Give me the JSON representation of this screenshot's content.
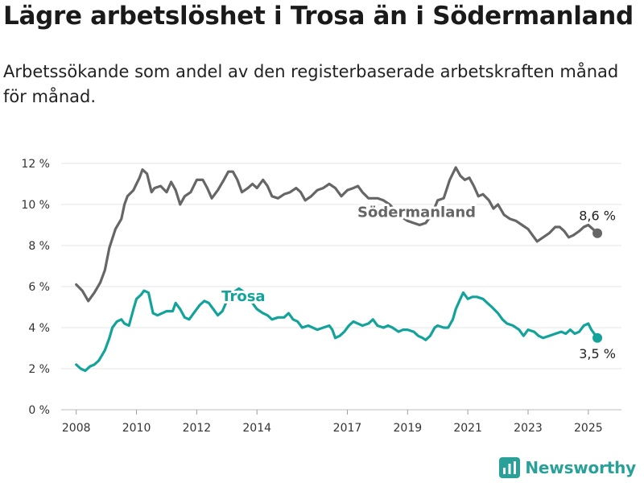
{
  "title": "Lägre arbetslöshet i Trosa än i Södermanland",
  "subtitle": "Arbetssökande som andel av den registerbaserade arbetskraften månad för månad.",
  "brand": {
    "name": "Newsworthy",
    "icon": "bar-chart-logo-icon",
    "color": "#29a199"
  },
  "chart_data": {
    "type": "line",
    "xlim": [
      2007.5,
      2026.1
    ],
    "ylim": [
      0,
      12
    ],
    "x_ticks": [
      2008,
      2010,
      2012,
      2014,
      2017,
      2019,
      2021,
      2023,
      2025
    ],
    "x_tick_labels": [
      "2008",
      "2010",
      "2012",
      "2014",
      "2017",
      "2019",
      "2021",
      "2023",
      "2025"
    ],
    "y_ticks": [
      0,
      2,
      4,
      6,
      8,
      10,
      12
    ],
    "y_tick_labels": [
      "0 %",
      "2 %",
      "4 %",
      "6 %",
      "8 %",
      "10 %",
      "12 %"
    ],
    "grid": "horizontal",
    "series": [
      {
        "name": "Södermanland",
        "color": "#666666",
        "end_label": "8,6 %",
        "points": [
          [
            2008.0,
            6.1
          ],
          [
            2008.2,
            5.8
          ],
          [
            2008.4,
            5.3
          ],
          [
            2008.6,
            5.7
          ],
          [
            2008.8,
            6.2
          ],
          [
            2008.95,
            6.8
          ],
          [
            2009.1,
            7.9
          ],
          [
            2009.3,
            8.8
          ],
          [
            2009.5,
            9.3
          ],
          [
            2009.6,
            10.0
          ],
          [
            2009.7,
            10.4
          ],
          [
            2009.9,
            10.7
          ],
          [
            2010.0,
            11.0
          ],
          [
            2010.1,
            11.3
          ],
          [
            2010.2,
            11.7
          ],
          [
            2010.35,
            11.5
          ],
          [
            2010.5,
            10.6
          ],
          [
            2010.6,
            10.8
          ],
          [
            2010.8,
            10.9
          ],
          [
            2011.0,
            10.6
          ],
          [
            2011.15,
            11.1
          ],
          [
            2011.3,
            10.7
          ],
          [
            2011.45,
            10.0
          ],
          [
            2011.6,
            10.4
          ],
          [
            2011.8,
            10.6
          ],
          [
            2012.0,
            11.2
          ],
          [
            2012.2,
            11.2
          ],
          [
            2012.35,
            10.8
          ],
          [
            2012.5,
            10.3
          ],
          [
            2012.7,
            10.7
          ],
          [
            2012.9,
            11.2
          ],
          [
            2013.05,
            11.6
          ],
          [
            2013.2,
            11.6
          ],
          [
            2013.35,
            11.2
          ],
          [
            2013.5,
            10.6
          ],
          [
            2013.7,
            10.8
          ],
          [
            2013.85,
            11.0
          ],
          [
            2014.0,
            10.8
          ],
          [
            2014.2,
            11.2
          ],
          [
            2014.35,
            10.9
          ],
          [
            2014.5,
            10.4
          ],
          [
            2014.7,
            10.3
          ],
          [
            2014.9,
            10.5
          ],
          [
            2015.1,
            10.6
          ],
          [
            2015.3,
            10.8
          ],
          [
            2015.45,
            10.6
          ],
          [
            2015.6,
            10.2
          ],
          [
            2015.8,
            10.4
          ],
          [
            2016.0,
            10.7
          ],
          [
            2016.2,
            10.8
          ],
          [
            2016.4,
            11.0
          ],
          [
            2016.6,
            10.8
          ],
          [
            2016.8,
            10.4
          ],
          [
            2017.0,
            10.7
          ],
          [
            2017.2,
            10.8
          ],
          [
            2017.35,
            10.9
          ],
          [
            2017.5,
            10.6
          ],
          [
            2017.7,
            10.3
          ],
          [
            2017.9,
            10.3
          ],
          [
            2018.0,
            10.3
          ],
          [
            2018.2,
            10.2
          ],
          [
            2018.4,
            10.0
          ],
          [
            2018.6,
            9.7
          ],
          [
            2018.8,
            9.4
          ],
          [
            2019.0,
            9.2
          ],
          [
            2019.2,
            9.1
          ],
          [
            2019.4,
            9.0
          ],
          [
            2019.6,
            9.1
          ],
          [
            2019.8,
            9.5
          ],
          [
            2020.0,
            10.2
          ],
          [
            2020.2,
            10.3
          ],
          [
            2020.4,
            11.2
          ],
          [
            2020.6,
            11.8
          ],
          [
            2020.75,
            11.4
          ],
          [
            2020.9,
            11.2
          ],
          [
            2021.05,
            11.3
          ],
          [
            2021.2,
            10.9
          ],
          [
            2021.35,
            10.4
          ],
          [
            2021.5,
            10.5
          ],
          [
            2021.7,
            10.2
          ],
          [
            2021.85,
            9.8
          ],
          [
            2022.0,
            10.0
          ],
          [
            2022.2,
            9.5
          ],
          [
            2022.4,
            9.3
          ],
          [
            2022.6,
            9.2
          ],
          [
            2022.8,
            9.0
          ],
          [
            2023.0,
            8.8
          ],
          [
            2023.15,
            8.5
          ],
          [
            2023.3,
            8.2
          ],
          [
            2023.5,
            8.4
          ],
          [
            2023.7,
            8.6
          ],
          [
            2023.9,
            8.9
          ],
          [
            2024.05,
            8.9
          ],
          [
            2024.2,
            8.7
          ],
          [
            2024.35,
            8.4
          ],
          [
            2024.5,
            8.5
          ],
          [
            2024.7,
            8.7
          ],
          [
            2024.85,
            8.9
          ],
          [
            2025.0,
            9.0
          ],
          [
            2025.15,
            8.8
          ],
          [
            2025.3,
            8.6
          ]
        ]
      },
      {
        "name": "Trosa",
        "color": "#14a39a",
        "end_label": "3,5 %",
        "points": [
          [
            2008.0,
            2.2
          ],
          [
            2008.15,
            2.0
          ],
          [
            2008.3,
            1.9
          ],
          [
            2008.45,
            2.1
          ],
          [
            2008.6,
            2.2
          ],
          [
            2008.75,
            2.4
          ],
          [
            2008.95,
            2.9
          ],
          [
            2009.1,
            3.5
          ],
          [
            2009.2,
            4.0
          ],
          [
            2009.35,
            4.3
          ],
          [
            2009.5,
            4.4
          ],
          [
            2009.6,
            4.2
          ],
          [
            2009.75,
            4.1
          ],
          [
            2009.9,
            4.9
          ],
          [
            2010.0,
            5.4
          ],
          [
            2010.15,
            5.6
          ],
          [
            2010.25,
            5.8
          ],
          [
            2010.4,
            5.7
          ],
          [
            2010.55,
            4.7
          ],
          [
            2010.7,
            4.6
          ],
          [
            2010.85,
            4.7
          ],
          [
            2011.0,
            4.8
          ],
          [
            2011.2,
            4.8
          ],
          [
            2011.3,
            5.2
          ],
          [
            2011.45,
            4.9
          ],
          [
            2011.6,
            4.5
          ],
          [
            2011.75,
            4.4
          ],
          [
            2011.9,
            4.7
          ],
          [
            2012.1,
            5.1
          ],
          [
            2012.25,
            5.3
          ],
          [
            2012.4,
            5.2
          ],
          [
            2012.55,
            4.9
          ],
          [
            2012.7,
            4.6
          ],
          [
            2012.85,
            4.8
          ],
          [
            2013.0,
            5.3
          ],
          [
            2013.2,
            5.7
          ],
          [
            2013.4,
            5.9
          ],
          [
            2013.6,
            5.7
          ],
          [
            2013.8,
            5.3
          ],
          [
            2014.0,
            4.9
          ],
          [
            2014.2,
            4.7
          ],
          [
            2014.35,
            4.6
          ],
          [
            2014.5,
            4.4
          ],
          [
            2014.7,
            4.5
          ],
          [
            2014.9,
            4.5
          ],
          [
            2015.05,
            4.7
          ],
          [
            2015.2,
            4.4
          ],
          [
            2015.35,
            4.3
          ],
          [
            2015.5,
            4.0
          ],
          [
            2015.7,
            4.1
          ],
          [
            2015.85,
            4.0
          ],
          [
            2016.0,
            3.9
          ],
          [
            2016.2,
            4.0
          ],
          [
            2016.4,
            4.1
          ],
          [
            2016.5,
            3.9
          ],
          [
            2016.6,
            3.5
          ],
          [
            2016.75,
            3.6
          ],
          [
            2016.9,
            3.8
          ],
          [
            2017.05,
            4.1
          ],
          [
            2017.2,
            4.3
          ],
          [
            2017.35,
            4.2
          ],
          [
            2017.5,
            4.1
          ],
          [
            2017.7,
            4.2
          ],
          [
            2017.85,
            4.4
          ],
          [
            2018.0,
            4.1
          ],
          [
            2018.2,
            4.0
          ],
          [
            2018.35,
            4.1
          ],
          [
            2018.5,
            4.0
          ],
          [
            2018.7,
            3.8
          ],
          [
            2018.85,
            3.9
          ],
          [
            2019.0,
            3.9
          ],
          [
            2019.2,
            3.8
          ],
          [
            2019.35,
            3.6
          ],
          [
            2019.5,
            3.5
          ],
          [
            2019.6,
            3.4
          ],
          [
            2019.75,
            3.6
          ],
          [
            2019.9,
            4.0
          ],
          [
            2020.0,
            4.1
          ],
          [
            2020.2,
            4.0
          ],
          [
            2020.35,
            4.0
          ],
          [
            2020.5,
            4.4
          ],
          [
            2020.6,
            4.9
          ],
          [
            2020.75,
            5.4
          ],
          [
            2020.85,
            5.7
          ],
          [
            2021.0,
            5.4
          ],
          [
            2021.15,
            5.5
          ],
          [
            2021.3,
            5.5
          ],
          [
            2021.5,
            5.4
          ],
          [
            2021.65,
            5.2
          ],
          [
            2021.8,
            5.0
          ],
          [
            2022.0,
            4.7
          ],
          [
            2022.15,
            4.4
          ],
          [
            2022.3,
            4.2
          ],
          [
            2022.5,
            4.1
          ],
          [
            2022.7,
            3.9
          ],
          [
            2022.85,
            3.6
          ],
          [
            2023.0,
            3.9
          ],
          [
            2023.2,
            3.8
          ],
          [
            2023.35,
            3.6
          ],
          [
            2023.5,
            3.5
          ],
          [
            2023.7,
            3.6
          ],
          [
            2023.9,
            3.7
          ],
          [
            2024.1,
            3.8
          ],
          [
            2024.25,
            3.7
          ],
          [
            2024.4,
            3.9
          ],
          [
            2024.55,
            3.7
          ],
          [
            2024.7,
            3.8
          ],
          [
            2024.85,
            4.1
          ],
          [
            2025.0,
            4.2
          ],
          [
            2025.1,
            3.9
          ],
          [
            2025.3,
            3.5
          ]
        ]
      }
    ],
    "labels": [
      {
        "series": "Södermanland",
        "text": "Södermanland",
        "x": 2019.3,
        "y": 9.4
      },
      {
        "series": "Trosa",
        "text": "Trosa",
        "x": 2013.55,
        "y": 5.3
      }
    ]
  }
}
